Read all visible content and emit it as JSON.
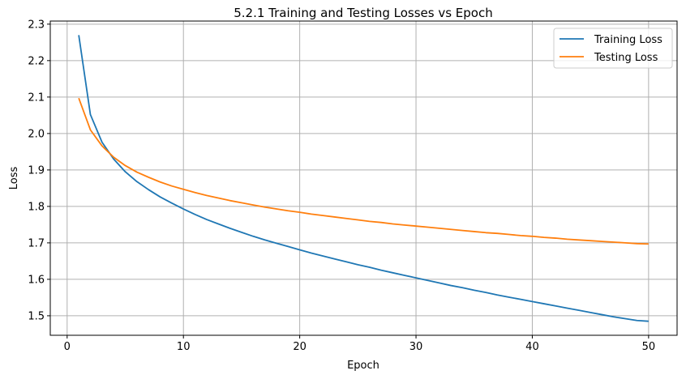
{
  "colors": {
    "training": "#1f77b4",
    "testing": "#ff7f0e",
    "grid": "#b0b0b0",
    "axis": "#000000"
  },
  "chart_data": {
    "type": "line",
    "title": "5.2.1 Training and Testing Losses vs Epoch",
    "xlabel": "Epoch",
    "ylabel": "Loss",
    "xlim": [
      -1.45,
      52.45
    ],
    "ylim": [
      1.4465,
      2.3085
    ],
    "xticks": [
      0,
      10,
      20,
      30,
      40,
      50
    ],
    "yticks": [
      1.5,
      1.6,
      1.7,
      1.8,
      1.9,
      2.0,
      2.1,
      2.2,
      2.3
    ],
    "ytick_labels": [
      "1.5",
      "1.6",
      "1.7",
      "1.8",
      "1.9",
      "2.0",
      "2.1",
      "2.2",
      "2.3"
    ],
    "xtick_labels": [
      "0",
      "10",
      "20",
      "30",
      "40",
      "50"
    ],
    "grid": true,
    "legend_position": "top-right",
    "x": [
      1,
      2,
      3,
      4,
      5,
      6,
      7,
      8,
      9,
      10,
      11,
      12,
      13,
      14,
      15,
      16,
      17,
      18,
      19,
      20,
      21,
      22,
      23,
      24,
      25,
      26,
      27,
      28,
      29,
      30,
      31,
      32,
      33,
      34,
      35,
      36,
      37,
      38,
      39,
      40,
      41,
      42,
      43,
      44,
      45,
      46,
      47,
      48,
      49,
      50
    ],
    "series": [
      {
        "name": "Training Loss",
        "color_key": "training",
        "values": [
          2.27,
          2.052,
          1.976,
          1.93,
          1.895,
          1.868,
          1.846,
          1.826,
          1.809,
          1.793,
          1.778,
          1.764,
          1.752,
          1.74,
          1.729,
          1.718,
          1.708,
          1.699,
          1.69,
          1.681,
          1.672,
          1.664,
          1.656,
          1.648,
          1.64,
          1.633,
          1.625,
          1.618,
          1.611,
          1.604,
          1.597,
          1.59,
          1.583,
          1.577,
          1.57,
          1.564,
          1.557,
          1.551,
          1.545,
          1.539,
          1.533,
          1.527,
          1.521,
          1.515,
          1.509,
          1.503,
          1.497,
          1.492,
          1.487,
          1.485
        ]
      },
      {
        "name": "Testing Loss",
        "color_key": "testing",
        "values": [
          2.097,
          2.01,
          1.966,
          1.935,
          1.912,
          1.894,
          1.88,
          1.867,
          1.856,
          1.847,
          1.838,
          1.83,
          1.823,
          1.816,
          1.81,
          1.804,
          1.798,
          1.793,
          1.788,
          1.784,
          1.779,
          1.775,
          1.771,
          1.767,
          1.763,
          1.759,
          1.756,
          1.752,
          1.749,
          1.746,
          1.743,
          1.74,
          1.737,
          1.734,
          1.731,
          1.728,
          1.726,
          1.723,
          1.72,
          1.718,
          1.715,
          1.713,
          1.71,
          1.708,
          1.706,
          1.704,
          1.702,
          1.7,
          1.698,
          1.697
        ]
      }
    ]
  }
}
